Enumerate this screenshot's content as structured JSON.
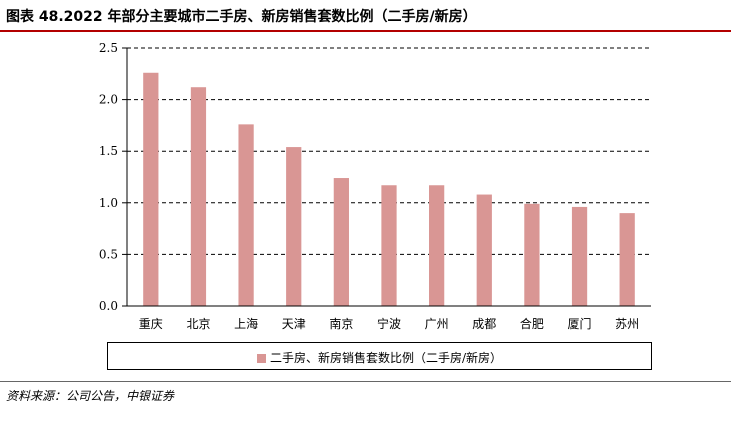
{
  "figure": {
    "title": "图表 48.2022 年部分主要城市二手房、新房销售套数比例（二手房/新房）",
    "source": "资料来源：公司公告，中银证券"
  },
  "colors": {
    "bar": "#d99694",
    "title_rule": "#b30000"
  },
  "chart_data": {
    "type": "bar",
    "categories": [
      "重庆",
      "北京",
      "上海",
      "天津",
      "南京",
      "宁波",
      "广州",
      "成都",
      "合肥",
      "厦门",
      "苏州"
    ],
    "series": [
      {
        "name": "二手房、新房销售套数比例（二手房/新房）",
        "values": [
          2.26,
          2.12,
          1.76,
          1.54,
          1.24,
          1.17,
          1.17,
          1.08,
          0.99,
          0.96,
          0.9
        ]
      }
    ],
    "ylim": [
      0,
      2.5
    ],
    "yticks": [
      "0.0",
      "0.5",
      "1.0",
      "1.5",
      "2.0",
      "2.5"
    ],
    "grid": "horizontal dashed",
    "legend": "bottom"
  }
}
